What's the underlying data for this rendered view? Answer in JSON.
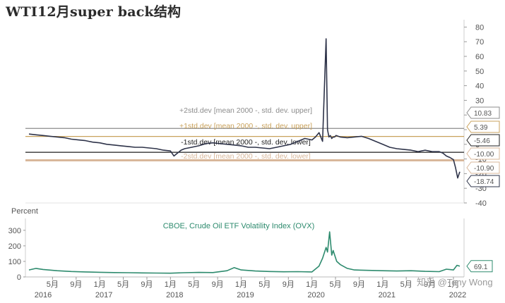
{
  "title": "WTI12月super back结构",
  "watermark": "知乎 @Tony Wong",
  "colors": {
    "spread_line": "#2e3349",
    "ovx_line": "#2e8b6e",
    "band_plus2": "#8c8c8c",
    "band_plus1": "#c9a25c",
    "band_minus1": "#1f1f1f",
    "band_minus2": "#d8b79a",
    "ovx_label": "#2e8b6e"
  },
  "chart_data": [
    {
      "type": "line",
      "title": "WTI12月super back结构",
      "ylim": [
        -40,
        85
      ],
      "y_ticks": [
        "80",
        "70",
        "60",
        "50",
        "40",
        "30",
        "20",
        "10",
        "0",
        "-10",
        "-20",
        "-30",
        "-40"
      ],
      "y_tick_values": [
        80,
        70,
        60,
        50,
        40,
        30,
        20,
        10,
        0,
        -10,
        -20,
        -30,
        -40
      ],
      "x_range": [
        2015.95,
        2022.15
      ],
      "annotations": [
        {
          "label": "+2std.dev [mean 2000 -, std. dev. upper]",
          "value": 10.83,
          "tag": "10.83",
          "color_key": "band_plus2"
        },
        {
          "label": "+1std.dev [mean 2000 -, std. dev. upper]",
          "value": 5.39,
          "tag": "5.39",
          "color_key": "band_plus1"
        },
        {
          "label": "-1std.dev [mean 2000 -, std. dev. lower]",
          "value": -5.46,
          "tag": "-5.46",
          "color_key": "band_minus1"
        },
        {
          "label": "-2std.dev [mean 2000 -, std. dev. lower]",
          "value": -10.9,
          "tag": "-10.90",
          "color_key": "band_minus2"
        }
      ],
      "extra_tags": [
        {
          "tag": "-10.00",
          "value": -10.0
        },
        {
          "tag": "-18.74",
          "value": -18.74
        }
      ],
      "series": [
        {
          "x": [
            2016.0,
            2016.1,
            2016.2,
            2016.3,
            2016.4,
            2016.5,
            2016.6,
            2016.7,
            2016.8,
            2016.9,
            2017.0,
            2017.1,
            2017.2,
            2017.3,
            2017.4,
            2017.5,
            2017.6,
            2017.7,
            2017.8,
            2017.9,
            2018.0,
            2018.05,
            2018.1,
            2018.15,
            2018.2,
            2018.3,
            2018.4,
            2018.5,
            2018.6,
            2018.7,
            2018.8,
            2018.9,
            2019.0,
            2019.1,
            2019.2,
            2019.3,
            2019.4,
            2019.5,
            2019.6,
            2019.7,
            2019.8,
            2019.9,
            2020.0,
            2020.05,
            2020.1,
            2020.15,
            2020.2,
            2020.22,
            2020.24,
            2020.26,
            2020.28,
            2020.3,
            2020.32,
            2020.34,
            2020.4,
            2020.5,
            2020.6,
            2020.7,
            2020.8,
            2020.9,
            2021.0,
            2021.1,
            2021.2,
            2021.3,
            2021.4,
            2021.5,
            2021.6,
            2021.7,
            2021.8,
            2021.85,
            2021.9,
            2021.95,
            2022.0,
            2022.03,
            2022.06,
            2022.09
          ],
          "values": [
            7,
            6.5,
            6,
            5.5,
            5,
            4.5,
            3.5,
            3,
            2.5,
            1.5,
            1,
            0,
            -0.5,
            -1,
            -1.5,
            -2,
            -2,
            -2.5,
            -3,
            -4,
            -4.5,
            -8,
            -6,
            -4,
            -3,
            -2,
            -1,
            0.5,
            1,
            0.5,
            0,
            -0.5,
            -1,
            -2,
            -2,
            -2.5,
            -3,
            -2,
            -1,
            0,
            2,
            4,
            3,
            5,
            8,
            2,
            72,
            10,
            5,
            6,
            4,
            5,
            5,
            6,
            5,
            4.5,
            5,
            5.5,
            4,
            2,
            0,
            -2,
            -3,
            -3.5,
            -4,
            -5,
            -4,
            -5,
            -5,
            -6,
            -8,
            -9,
            -10.5,
            -16,
            -23,
            -18.74
          ]
        }
      ]
    },
    {
      "type": "line",
      "title": "",
      "ylabel": "Percent",
      "ylim": [
        0,
        340
      ],
      "y_ticks": [
        "300",
        "200",
        "100",
        "0"
      ],
      "y_tick_values": [
        300,
        200,
        100,
        0
      ],
      "x_range": [
        2015.95,
        2022.15
      ],
      "series_label": "CBOE, Crude Oil ETF Volatility Index (OVX)",
      "last_value_tag": "69.1",
      "x_month_labels": [
        "1月",
        "5月",
        "9月",
        "1月",
        "5月",
        "9月",
        "1月",
        "5月",
        "9月",
        "1月",
        "5月",
        "9月",
        "1月",
        "5月",
        "9月",
        "1月",
        "5月",
        "9月"
      ],
      "x_month_values": [
        2017.0,
        2017.333,
        2017.667,
        2018.0,
        2018.333,
        2018.667,
        2019.0,
        2019.333,
        2019.667,
        2020.0,
        2020.333,
        2020.667,
        2021.0,
        2021.333,
        2021.667,
        2022.0,
        2016.333,
        2016.667
      ],
      "x_year_labels": [
        "2016",
        "2017",
        "2018",
        "2019",
        "2020",
        "2021",
        "2022"
      ],
      "x_year_values": [
        2016.0,
        2017.0,
        2018.0,
        2019.0,
        2020.0,
        2021.0,
        2022.0
      ],
      "series": [
        {
          "name": "CBOE, Crude Oil ETF Volatility Index (OVX)",
          "x": [
            2016.0,
            2016.1,
            2016.2,
            2016.4,
            2016.6,
            2016.8,
            2017.0,
            2017.2,
            2017.4,
            2017.6,
            2017.8,
            2018.0,
            2018.2,
            2018.4,
            2018.6,
            2018.8,
            2018.9,
            2019.0,
            2019.2,
            2019.4,
            2019.6,
            2019.8,
            2020.0,
            2020.1,
            2020.15,
            2020.2,
            2020.22,
            2020.25,
            2020.28,
            2020.3,
            2020.35,
            2020.4,
            2020.5,
            2020.6,
            2020.8,
            2021.0,
            2021.2,
            2021.4,
            2021.6,
            2021.8,
            2021.9,
            2022.0,
            2022.05,
            2022.09
          ],
          "values": [
            45,
            55,
            48,
            40,
            35,
            32,
            30,
            28,
            27,
            26,
            25,
            24,
            27,
            29,
            28,
            40,
            60,
            45,
            38,
            35,
            33,
            34,
            32,
            70,
            120,
            190,
            160,
            290,
            140,
            170,
            100,
            80,
            55,
            45,
            42,
            40,
            38,
            40,
            36,
            34,
            50,
            45,
            75,
            69.1
          ]
        }
      ]
    }
  ]
}
